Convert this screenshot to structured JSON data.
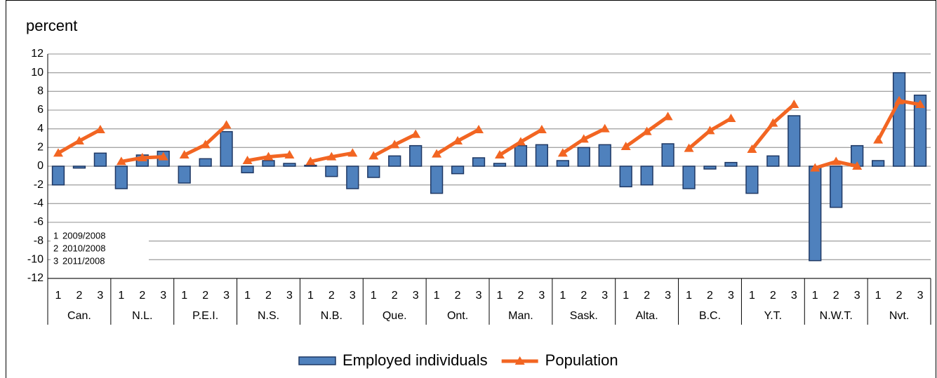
{
  "chart_data": {
    "type": "bar-line",
    "title": "percent",
    "groups": [
      "Can.",
      "N.L.",
      "P.E.I.",
      "N.S.",
      "N.B.",
      "Que.",
      "Ont.",
      "Man.",
      "Sask.",
      "Alta.",
      "B.C.",
      "Y.T.",
      "N.W.T.",
      "Nvt."
    ],
    "categories": [
      "1",
      "2",
      "3",
      "1",
      "2",
      "3",
      "1",
      "2",
      "3",
      "1",
      "2",
      "3",
      "1",
      "2",
      "3",
      "1",
      "2",
      "3",
      "1",
      "2",
      "3",
      "1",
      "2",
      "3",
      "1",
      "2",
      "3",
      "1",
      "2",
      "3",
      "1",
      "2",
      "3",
      "1",
      "2",
      "3",
      "1",
      "2",
      "3",
      "1",
      "2",
      "3"
    ],
    "series": [
      {
        "name": "Employed individuals",
        "type": "bar",
        "color": "#4f81bd",
        "values": [
          -2.0,
          -0.2,
          1.4,
          -2.4,
          1.2,
          1.6,
          -1.8,
          0.8,
          3.7,
          -0.7,
          0.6,
          0.3,
          0.1,
          -1.1,
          -2.4,
          -1.2,
          1.1,
          2.2,
          -2.9,
          -0.8,
          0.9,
          0.3,
          2.2,
          2.3,
          0.6,
          2.0,
          2.3,
          -2.2,
          -2.0,
          2.4,
          -2.4,
          -0.3,
          0.4,
          -2.9,
          1.1,
          5.4,
          -10.1,
          -4.4,
          2.2,
          0.6,
          10.0,
          7.6
        ]
      },
      {
        "name": "Population",
        "type": "line",
        "color": "#f26522",
        "values": [
          1.4,
          2.7,
          3.9,
          0.5,
          0.9,
          1.0,
          1.2,
          2.3,
          4.4,
          0.6,
          1.0,
          1.2,
          0.5,
          1.0,
          1.4,
          1.1,
          2.3,
          3.4,
          1.3,
          2.7,
          3.9,
          1.2,
          2.6,
          3.9,
          1.4,
          2.9,
          4.0,
          2.1,
          3.7,
          5.3,
          1.9,
          3.8,
          5.1,
          1.8,
          4.6,
          6.6,
          -0.2,
          0.5,
          0.0,
          2.8,
          7.0,
          6.6
        ]
      }
    ],
    "key": [
      {
        "code": "1",
        "label": "2009/2008"
      },
      {
        "code": "2",
        "label": "2010/2008"
      },
      {
        "code": "3",
        "label": "2011/2008"
      }
    ],
    "ylim": [
      -12,
      12
    ],
    "yticks": [
      -12,
      -10,
      -8,
      -6,
      -4,
      -2,
      0,
      2,
      4,
      6,
      8,
      10,
      12
    ],
    "grid": true
  }
}
